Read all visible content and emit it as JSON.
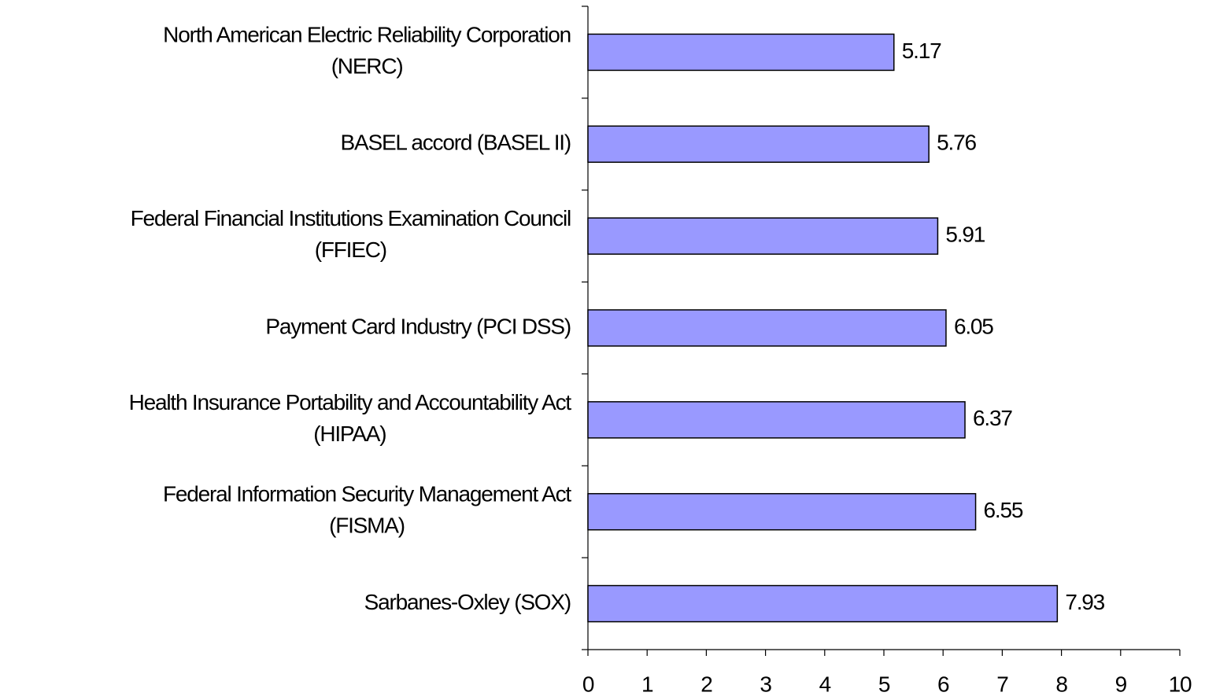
{
  "chart_data": {
    "type": "bar",
    "orientation": "horizontal",
    "categories": [
      "North American Electric Reliability Corporation (NERC)",
      "BASEL accord (BASEL II)",
      "Federal Financial Institutions Examination Council (FFIEC)",
      "Payment Card Industry (PCI DSS)",
      "Health Insurance Portability and Accountability Act (HIPAA)",
      "Federal Information Security Management Act (FISMA)",
      "Sarbanes-Oxley (SOX)"
    ],
    "values": [
      5.17,
      5.76,
      5.91,
      6.05,
      6.37,
      6.55,
      7.93
    ],
    "color": "#9999ff",
    "xlim": [
      0,
      10
    ],
    "xticks": [
      0,
      1,
      2,
      3,
      4,
      5,
      6,
      7,
      8,
      9,
      10
    ]
  }
}
